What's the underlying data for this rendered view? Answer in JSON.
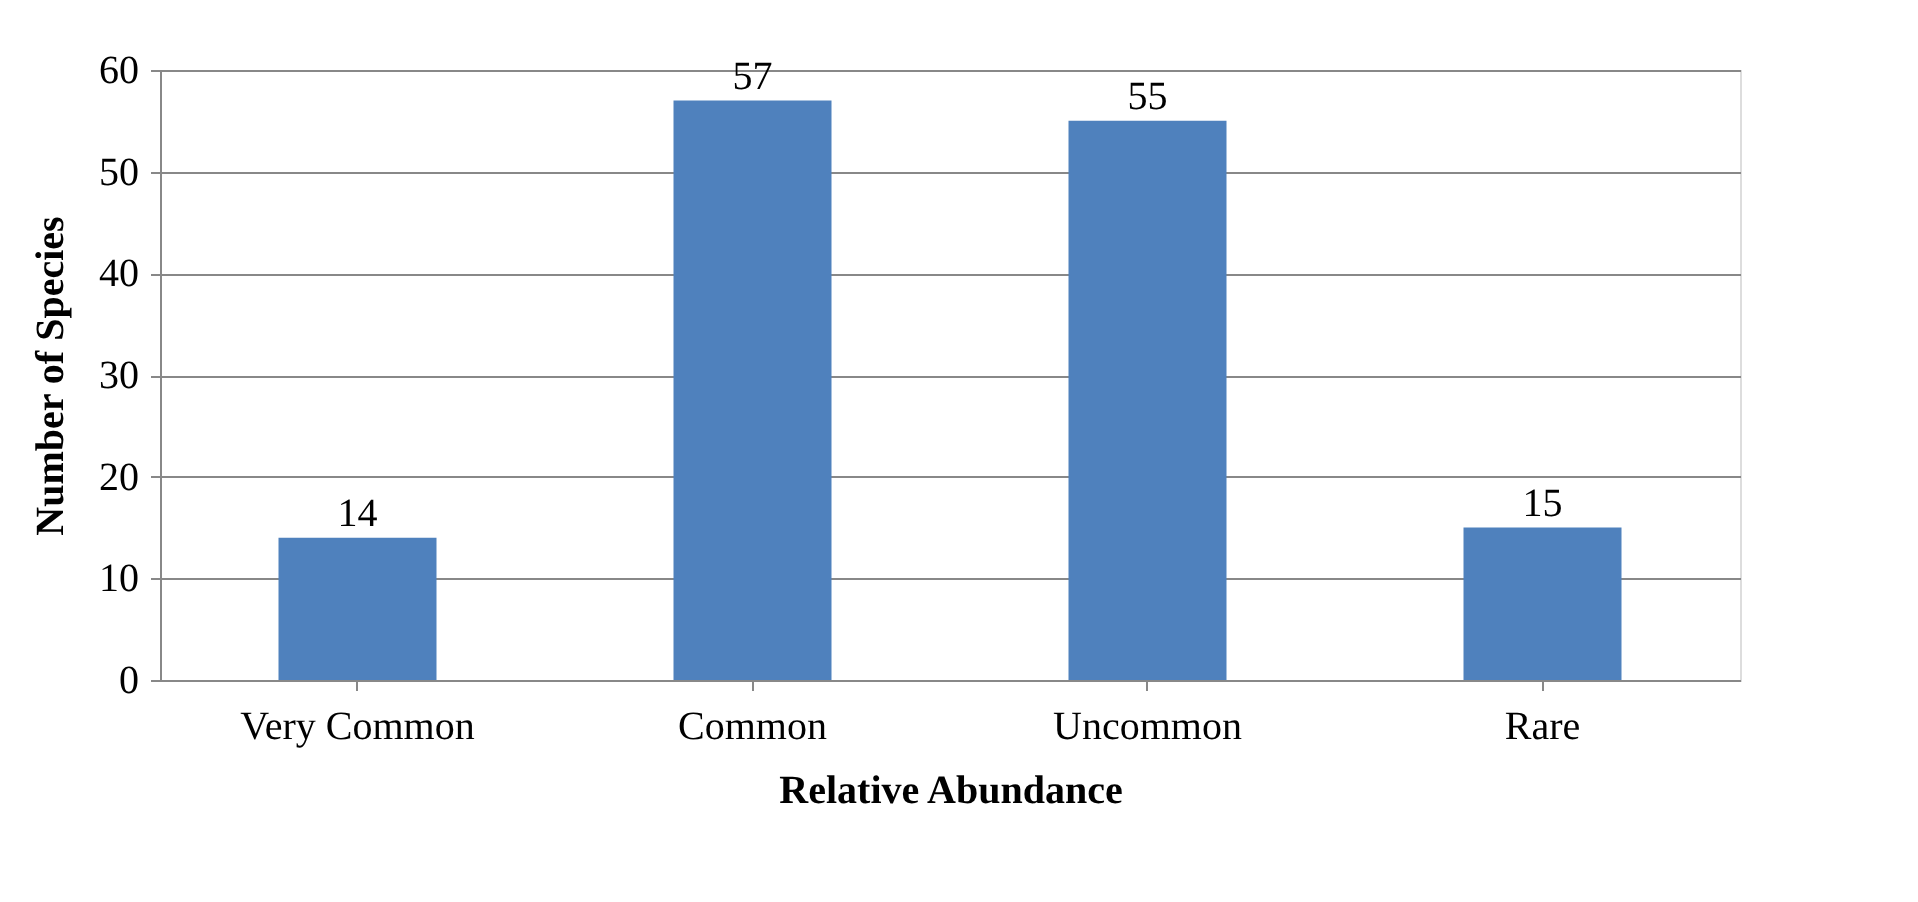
{
  "chart_data": {
    "type": "bar",
    "xlabel": "Relative Abundance",
    "ylabel": "Number of Species",
    "categories": [
      "Very Common",
      "Common",
      "Uncommon",
      "Rare"
    ],
    "values": [
      14,
      57,
      55,
      15
    ],
    "color": "#4f81bd",
    "ylim": [
      0,
      60
    ],
    "yticks": [
      0,
      10,
      20,
      30,
      40,
      50,
      60
    ],
    "grid": "y",
    "data_labels": true
  }
}
